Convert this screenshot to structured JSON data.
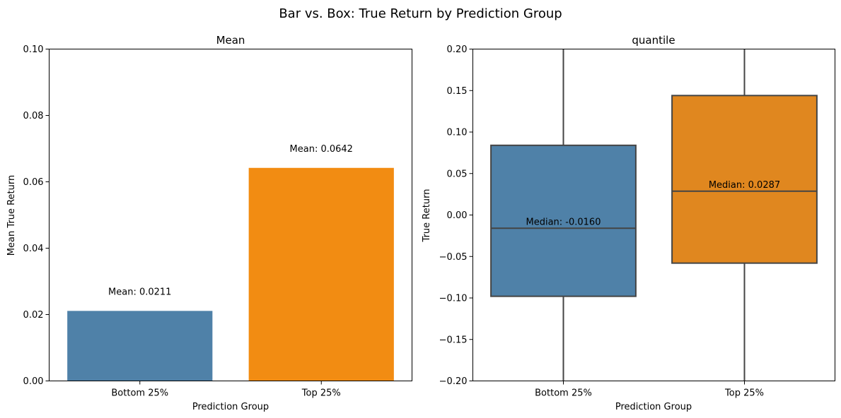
{
  "figure": {
    "title": "Bar vs. Box: True Return by Prediction Group"
  },
  "chart_data": [
    {
      "type": "bar",
      "title": "Mean",
      "xlabel": "Prediction Group",
      "ylabel": "Mean True Return",
      "categories": [
        "Bottom 25%",
        "Top 25%"
      ],
      "values": [
        0.0211,
        0.0642
      ],
      "colors": [
        "#4f81a8",
        "#f28c12"
      ],
      "ylim": [
        0,
        0.1
      ],
      "yticks": [
        0.0,
        0.02,
        0.04,
        0.06,
        0.08,
        0.1
      ],
      "ytick_labels": [
        "0.00",
        "0.02",
        "0.04",
        "0.06",
        "0.08",
        "0.10"
      ],
      "annotations": [
        "Mean: 0.0211",
        "Mean: 0.0642"
      ],
      "grid": false
    },
    {
      "type": "box",
      "title": "quantile",
      "xlabel": "Prediction Group",
      "ylabel": "True Return",
      "categories": [
        "Bottom 25%",
        "Top 25%"
      ],
      "boxes": [
        {
          "q1": -0.098,
          "median": -0.016,
          "q3": 0.084,
          "whisker_low": -0.2,
          "whisker_high": 0.2
        },
        {
          "q1": -0.058,
          "median": 0.0287,
          "q3": 0.144,
          "whisker_low": -0.2,
          "whisker_high": 0.2
        }
      ],
      "colors": [
        "#4f81a8",
        "#e0871f"
      ],
      "ylim": [
        -0.2,
        0.2
      ],
      "yticks": [
        -0.2,
        -0.15,
        -0.1,
        -0.05,
        0.0,
        0.05,
        0.1,
        0.15,
        0.2
      ],
      "ytick_labels": [
        "−0.20",
        "−0.15",
        "−0.10",
        "−0.05",
        "0.00",
        "0.05",
        "0.10",
        "0.15",
        "0.20"
      ],
      "annotations": [
        "Median: -0.0160",
        "Median: 0.0287"
      ],
      "grid": false
    }
  ]
}
